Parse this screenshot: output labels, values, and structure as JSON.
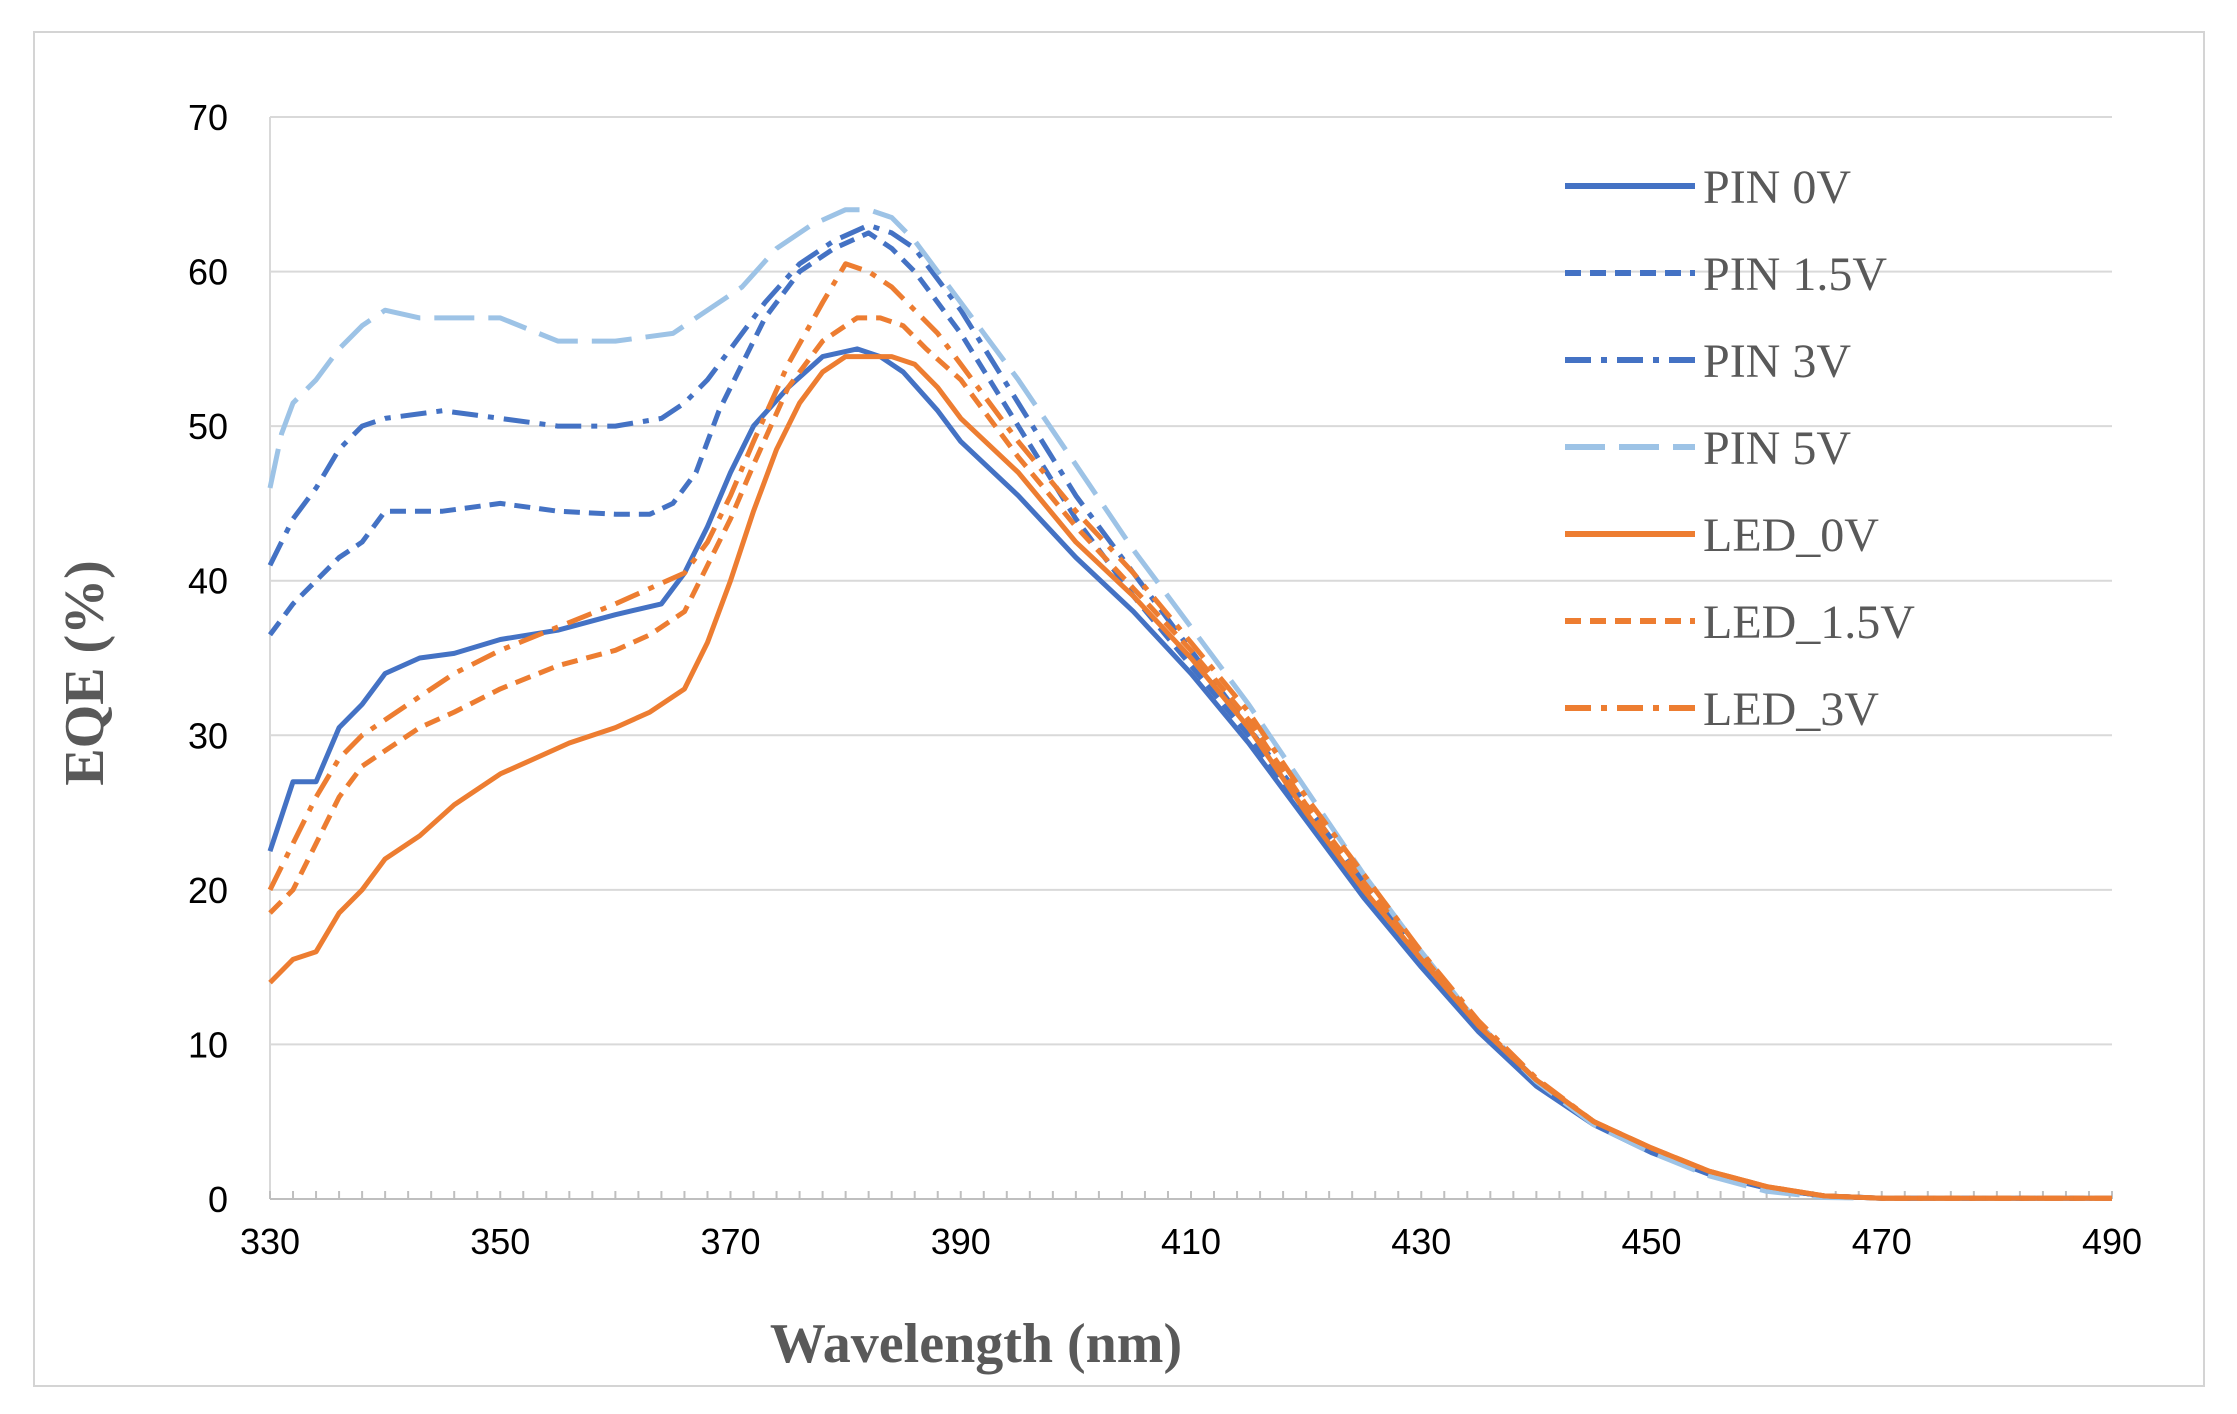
{
  "chart_data": {
    "type": "line",
    "title": "",
    "xlabel": "Wavelength (nm)",
    "ylabel": "EQE (%)",
    "xlim": [
      330,
      490
    ],
    "ylim": [
      0,
      70
    ],
    "xticks": [
      330,
      350,
      370,
      390,
      410,
      430,
      450,
      470,
      490
    ],
    "yticks": [
      0,
      10,
      20,
      30,
      40,
      50,
      60,
      70
    ],
    "xtick_labels": [
      "330",
      "350",
      "370",
      "390",
      "410",
      "430",
      "450",
      "470",
      "490"
    ],
    "ytick_labels": [
      "0",
      "10",
      "20",
      "30",
      "40",
      "50",
      "60",
      "70"
    ],
    "grid": "horizontal",
    "legend_position": "top-right",
    "series": [
      {
        "name": "PIN 0V",
        "color": "#4472C4",
        "dash": "solid",
        "x": [
          330,
          332,
          334,
          336,
          338,
          340,
          343,
          346,
          350,
          355,
          360,
          364,
          366,
          368,
          370,
          372,
          375,
          378,
          381,
          383,
          385,
          388,
          390,
          395,
          400,
          405,
          410,
          415,
          420,
          425,
          430,
          435,
          440,
          445,
          450,
          455,
          460,
          465,
          470,
          480,
          490
        ],
        "y": [
          22.5,
          27.0,
          27.0,
          30.5,
          32.0,
          34.0,
          35.0,
          35.3,
          36.2,
          36.8,
          37.8,
          38.5,
          40.5,
          43.5,
          47.0,
          50.0,
          52.5,
          54.5,
          55.0,
          54.5,
          53.5,
          51.0,
          49.0,
          45.5,
          41.5,
          38.0,
          34.0,
          29.5,
          24.5,
          19.5,
          15.0,
          10.8,
          7.3,
          4.8,
          3.0,
          1.6,
          0.7,
          0.2,
          0.05,
          0.05,
          0.05
        ]
      },
      {
        "name": "PIN 1.5V",
        "color": "#4472C4",
        "dash": "dashed",
        "x": [
          330,
          332,
          334,
          336,
          338,
          340,
          345,
          350,
          355,
          360,
          363,
          365,
          367,
          369,
          371,
          373,
          376,
          379,
          382,
          384,
          386,
          388,
          390,
          395,
          400,
          405,
          410,
          415,
          420,
          425,
          430,
          435,
          440,
          445,
          450,
          455,
          460,
          465,
          470,
          480,
          490
        ],
        "y": [
          36.5,
          38.5,
          40.0,
          41.5,
          42.5,
          44.5,
          44.5,
          45.0,
          44.5,
          44.3,
          44.3,
          45.0,
          47.0,
          51.0,
          54.0,
          57.0,
          60.0,
          61.5,
          62.5,
          61.5,
          60.0,
          58.0,
          56.0,
          50.0,
          44.0,
          39.0,
          34.5,
          30.0,
          25.0,
          20.0,
          15.5,
          11.0,
          7.6,
          5.0,
          3.2,
          1.7,
          0.7,
          0.2,
          0.05,
          0.05,
          0.05
        ]
      },
      {
        "name": "PIN 3V",
        "color": "#4472C4",
        "dash": "dashdot",
        "x": [
          330,
          332,
          334,
          336,
          338,
          340,
          345,
          350,
          355,
          360,
          364,
          366,
          368,
          370,
          373,
          376,
          379,
          382,
          384,
          386,
          388,
          390,
          395,
          400,
          405,
          410,
          415,
          420,
          425,
          430,
          435,
          440,
          445,
          450,
          455,
          460,
          465,
          470,
          480,
          490
        ],
        "y": [
          41.0,
          44.0,
          46.0,
          48.5,
          50.0,
          50.5,
          51.0,
          50.5,
          50.0,
          50.0,
          50.5,
          51.5,
          53.0,
          55.0,
          58.0,
          60.5,
          62.0,
          63.0,
          62.5,
          61.5,
          59.5,
          57.5,
          51.5,
          45.5,
          40.5,
          35.5,
          30.5,
          25.5,
          20.5,
          15.8,
          11.3,
          7.7,
          5.0,
          3.2,
          1.7,
          0.7,
          0.2,
          0.05,
          0.05,
          0.05
        ]
      },
      {
        "name": "PIN 5V",
        "color": "#9DC3E6",
        "dash": "longdash",
        "x": [
          330,
          331,
          332,
          334,
          336,
          338,
          340,
          343,
          346,
          350,
          355,
          360,
          365,
          368,
          371,
          374,
          377,
          380,
          382,
          384,
          386,
          388,
          390,
          395,
          400,
          405,
          410,
          415,
          420,
          425,
          430,
          435,
          440,
          445,
          450,
          455,
          460,
          465,
          470,
          480,
          490
        ],
        "y": [
          46.0,
          49.5,
          51.5,
          53.0,
          55.0,
          56.5,
          57.5,
          57.0,
          57.0,
          57.0,
          55.5,
          55.5,
          56.0,
          57.5,
          59.0,
          61.5,
          63.0,
          64.0,
          64.0,
          63.5,
          62.0,
          60.0,
          58.0,
          53.0,
          47.5,
          42.0,
          37.0,
          32.0,
          26.5,
          21.0,
          16.0,
          11.3,
          7.6,
          4.8,
          3.0,
          1.5,
          0.5,
          0.1,
          0.05,
          0.05,
          0.05
        ]
      },
      {
        "name": "LED_0V",
        "color": "#ED7D31",
        "dash": "solid",
        "x": [
          330,
          332,
          334,
          336,
          338,
          340,
          343,
          346,
          350,
          353,
          356,
          360,
          363,
          366,
          368,
          370,
          372,
          374,
          376,
          378,
          380,
          382,
          384,
          386,
          388,
          390,
          395,
          400,
          405,
          410,
          415,
          420,
          425,
          430,
          435,
          440,
          445,
          450,
          455,
          460,
          465,
          470,
          480,
          490
        ],
        "y": [
          14.0,
          15.5,
          16.0,
          18.5,
          20.0,
          22.0,
          23.5,
          25.5,
          27.5,
          28.5,
          29.5,
          30.5,
          31.5,
          33.0,
          36.0,
          40.0,
          44.5,
          48.5,
          51.5,
          53.5,
          54.5,
          54.5,
          54.5,
          54.0,
          52.5,
          50.5,
          47.0,
          42.5,
          39.0,
          35.0,
          30.5,
          25.0,
          20.0,
          15.5,
          11.2,
          7.7,
          5.0,
          3.3,
          1.8,
          0.8,
          0.2,
          0.05,
          0.05,
          0.05
        ]
      },
      {
        "name": "LED_1.5V",
        "color": "#ED7D31",
        "dash": "dashed",
        "x": [
          330,
          332,
          334,
          336,
          338,
          340,
          343,
          346,
          350,
          355,
          360,
          363,
          366,
          368,
          370,
          372,
          375,
          378,
          381,
          383,
          385,
          387,
          390,
          395,
          400,
          405,
          410,
          415,
          420,
          425,
          430,
          435,
          440,
          445,
          450,
          455,
          460,
          465,
          470,
          480,
          490
        ],
        "y": [
          18.5,
          20.0,
          23.0,
          26.0,
          28.0,
          29.0,
          30.5,
          31.5,
          33.0,
          34.5,
          35.5,
          36.5,
          38.0,
          41.0,
          44.0,
          47.5,
          52.5,
          55.5,
          57.0,
          57.0,
          56.5,
          55.0,
          53.0,
          48.0,
          43.5,
          39.5,
          35.5,
          31.0,
          25.5,
          20.5,
          15.8,
          11.3,
          7.7,
          5.0,
          3.3,
          1.8,
          0.8,
          0.2,
          0.05,
          0.05,
          0.05
        ]
      },
      {
        "name": "LED_3V",
        "color": "#ED7D31",
        "dash": "dashdot",
        "x": [
          330,
          332,
          334,
          336,
          338,
          340,
          343,
          346,
          350,
          355,
          360,
          363,
          366,
          368,
          370,
          372,
          375,
          378,
          380,
          382,
          384,
          386,
          388,
          390,
          395,
          400,
          405,
          410,
          415,
          420,
          425,
          430,
          435,
          440,
          445,
          450,
          455,
          460,
          465,
          470,
          480,
          490
        ],
        "y": [
          20.0,
          23.0,
          26.0,
          28.5,
          30.0,
          31.0,
          32.5,
          34.0,
          35.5,
          37.0,
          38.5,
          39.5,
          40.5,
          42.5,
          45.5,
          49.0,
          54.0,
          58.0,
          60.5,
          60.0,
          59.0,
          57.5,
          56.0,
          54.0,
          49.0,
          44.5,
          40.5,
          36.0,
          31.5,
          26.0,
          21.0,
          16.0,
          11.5,
          7.8,
          5.0,
          3.3,
          1.8,
          0.8,
          0.2,
          0.05,
          0.05,
          0.05
        ]
      }
    ]
  }
}
